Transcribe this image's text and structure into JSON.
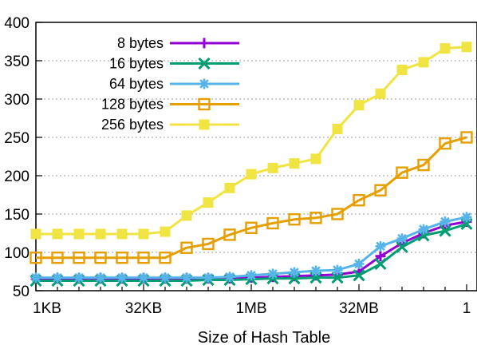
{
  "chart_data": {
    "type": "line",
    "title": "",
    "xlabel": "Size of Hash Table",
    "ylabel": "",
    "ylim": [
      50,
      400
    ],
    "yticks": [
      50,
      100,
      150,
      200,
      250,
      300,
      350,
      400
    ],
    "xtick_labels": [
      {
        "label": "1KB",
        "index": 0
      },
      {
        "label": "32KB",
        "index": 5
      },
      {
        "label": "1MB",
        "index": 10
      },
      {
        "label": "32MB",
        "index": 15
      },
      {
        "label": "1",
        "index": 20
      }
    ],
    "grid": "horizontal dotted",
    "legend_position": "top-left",
    "x_count": 21,
    "series": [
      {
        "name": "8 bytes",
        "color": "#9400d3",
        "marker": "plus",
        "values": [
          66,
          66,
          66,
          66,
          66,
          66,
          66,
          66,
          66,
          66,
          67,
          68,
          69,
          70,
          71,
          75,
          95,
          112,
          125,
          135,
          140
        ]
      },
      {
        "name": "16 bytes",
        "color": "#009e73",
        "marker": "cross",
        "values": [
          63,
          63,
          63,
          63,
          63,
          63,
          63,
          63,
          64,
          64,
          65,
          66,
          66,
          67,
          67,
          70,
          85,
          107,
          122,
          128,
          137
        ]
      },
      {
        "name": "64 bytes",
        "color": "#56b4e9",
        "marker": "star",
        "values": [
          67,
          67,
          67,
          67,
          67,
          67,
          67,
          67,
          67,
          68,
          70,
          72,
          74,
          76,
          77,
          85,
          108,
          118,
          130,
          140,
          146
        ]
      },
      {
        "name": "128 bytes",
        "color": "#e69f00",
        "marker": "square-open",
        "values": [
          93,
          93,
          93,
          93,
          93,
          93,
          93,
          106,
          111,
          123,
          132,
          138,
          143,
          145,
          150,
          168,
          181,
          204,
          214,
          242,
          250
        ]
      },
      {
        "name": "256 bytes",
        "color": "#f0e442",
        "marker": "square-filled",
        "values": [
          124,
          124,
          124,
          124,
          124,
          124,
          127,
          148,
          165,
          184,
          202,
          210,
          216,
          222,
          261,
          292,
          307,
          338,
          348,
          366,
          368
        ]
      }
    ]
  }
}
